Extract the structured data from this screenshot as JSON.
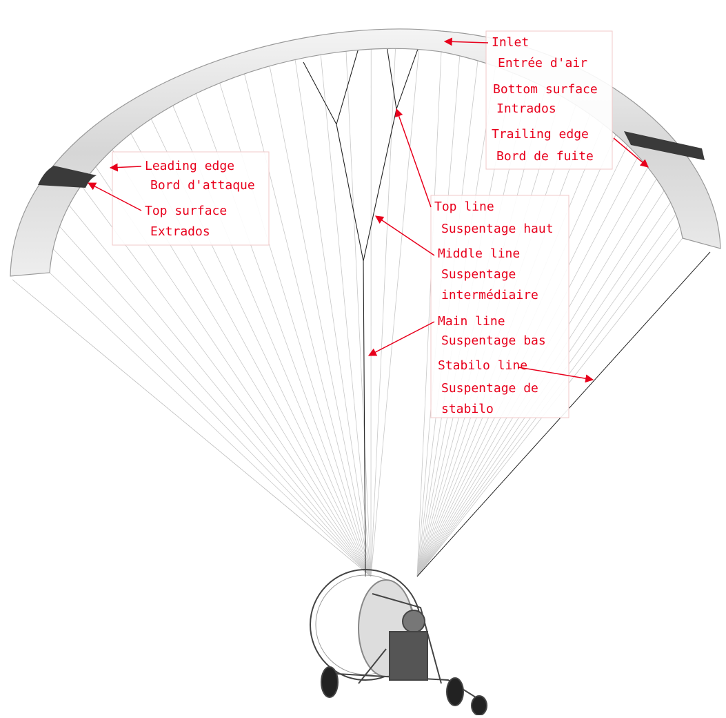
{
  "labels": [
    {
      "lines": [
        "Inlet",
        "Entrée d'air"
      ]
    },
    {
      "lines": [
        "Bottom surface",
        "Intrados"
      ]
    },
    {
      "lines": [
        "Trailing edge",
        "Bord de fuite"
      ]
    },
    {
      "lines": [
        "Leading edge",
        "Bord d'attaque"
      ]
    },
    {
      "lines": [
        "Top surface",
        "Extrados"
      ]
    },
    {
      "lines": [
        "Top line",
        "Suspentage haut"
      ]
    },
    {
      "lines": [
        "Middle line",
        "Suspentage",
        "intermédiaire"
      ]
    },
    {
      "lines": [
        "Main line",
        "Suspentage bas"
      ]
    },
    {
      "lines": [
        "Stabilo line",
        "Suspentage de",
        "stabilo"
      ]
    }
  ]
}
